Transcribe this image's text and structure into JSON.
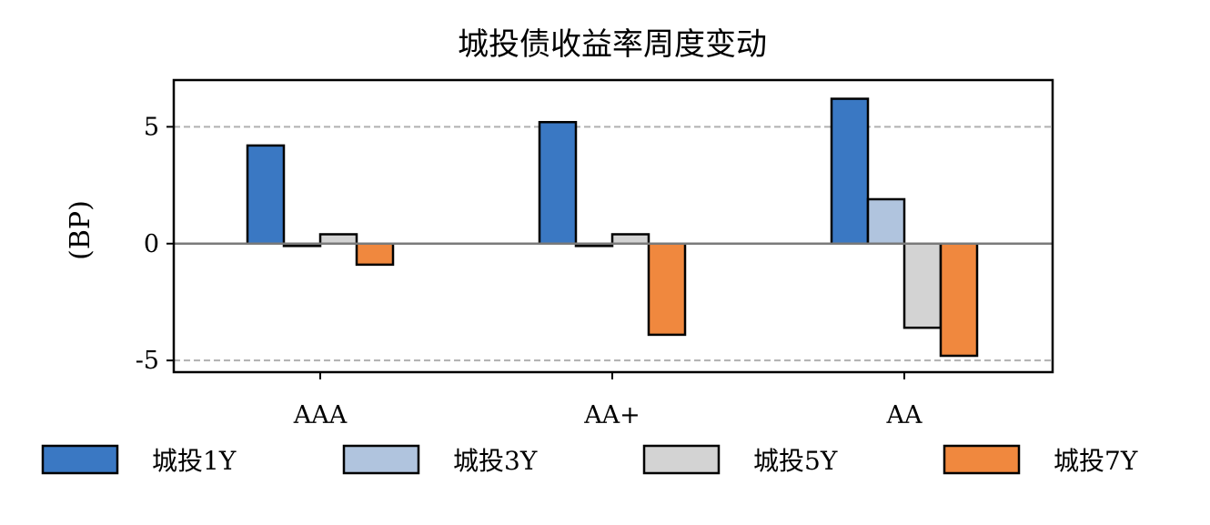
{
  "chart_data": {
    "type": "bar",
    "title": "城投债收益率周度变动",
    "xlabel": "",
    "ylabel": "(BP)",
    "categories": [
      "AAA",
      "AA+",
      "AA"
    ],
    "series": [
      {
        "name": "城投1Y",
        "values": [
          4.2,
          5.2,
          6.2
        ],
        "color": "#3a78c3"
      },
      {
        "name": "城投3Y",
        "values": [
          -0.1,
          -0.1,
          1.9
        ],
        "color": "#b0c4de"
      },
      {
        "name": "城投5Y",
        "values": [
          0.4,
          0.4,
          -3.6
        ],
        "color": "#d3d3d3"
      },
      {
        "name": "城投7Y",
        "values": [
          -0.9,
          -3.9,
          -4.8
        ],
        "color": "#f0883e"
      }
    ],
    "ylim": [
      -5.5,
      7
    ],
    "yticks": [
      -5,
      0,
      5
    ],
    "ytick_labels": [
      "-5",
      "0",
      "5"
    ],
    "grid": {
      "y": true,
      "style": "dashed",
      "values": [
        -5,
        5
      ]
    },
    "zero_line": true,
    "legend": "bottom"
  }
}
